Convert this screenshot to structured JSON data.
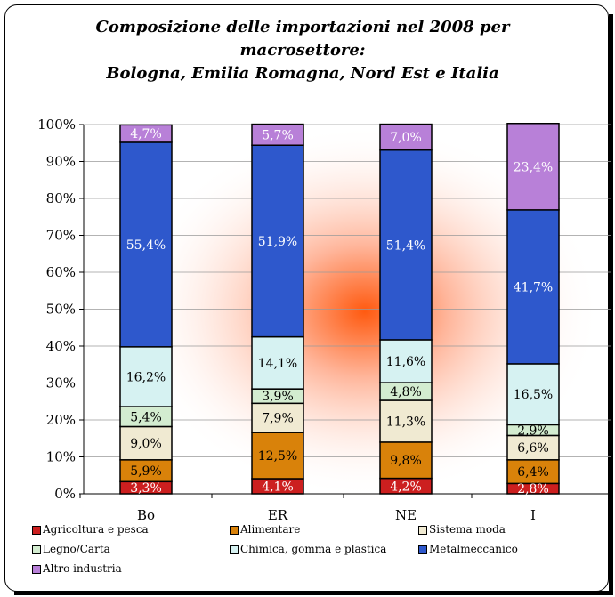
{
  "title_lines": [
    "Composizione delle importazioni nel 2008 per",
    "macrosettore:",
    "Bologna, Emilia Romagna, Nord Est e Italia"
  ],
  "chart_data": {
    "type": "bar",
    "stacked": true,
    "percent": true,
    "categories": [
      "Bo",
      "ER",
      "NE",
      "I"
    ],
    "ylim": [
      0,
      100
    ],
    "yticks": [
      "0%",
      "10%",
      "20%",
      "30%",
      "40%",
      "50%",
      "60%",
      "70%",
      "80%",
      "90%",
      "100%"
    ],
    "grid": true,
    "legend_position": "bottom",
    "series": [
      {
        "name": "Agricoltura e pesca",
        "color": "#cc1f1f",
        "values": [
          3.3,
          4.1,
          4.2,
          2.8
        ],
        "labels": [
          "3,3%",
          "4,1%",
          "4,2%",
          "2,8%"
        ]
      },
      {
        "name": "Alimentare",
        "color": "#d9820a",
        "values": [
          5.9,
          12.5,
          9.8,
          6.4
        ],
        "labels": [
          "5,9%",
          "12,5%",
          "9,8%",
          "6,4%"
        ]
      },
      {
        "name": "Sistema moda",
        "color": "#f0ead2",
        "values": [
          9.0,
          7.9,
          11.3,
          6.6
        ],
        "labels": [
          "9,0%",
          "7,9%",
          "11,3%",
          "6,6%"
        ]
      },
      {
        "name": "Legno/Carta",
        "color": "#d3ecd0",
        "values": [
          5.4,
          3.9,
          4.8,
          2.9
        ],
        "labels": [
          "5,4%",
          "3,9%",
          "4,8%",
          "2,9%"
        ]
      },
      {
        "name": "Chimica, gomma e plastica",
        "color": "#d6f2f2",
        "values": [
          16.2,
          14.1,
          11.6,
          16.5
        ],
        "labels": [
          "16,2%",
          "14,1%",
          "11,6%",
          "16,5%"
        ]
      },
      {
        "name": "Metalmeccanico",
        "color": "#2e58cc",
        "values": [
          55.4,
          51.9,
          51.4,
          41.7
        ],
        "labels": [
          "55,4%",
          "51,9%",
          "51,4%",
          "41,7%"
        ]
      },
      {
        "name": "Altro industria",
        "color": "#b880d8",
        "values": [
          4.7,
          5.7,
          7.0,
          23.4
        ],
        "labels": [
          "4,7%",
          "5,7%",
          "7,0%",
          "23,4%"
        ]
      }
    ],
    "legend_labels": [
      "Agricoltura e pesca",
      "Alimentare",
      "Sistema moda",
      "Legno/Carta",
      "Chimica, gomma e plastica",
      "Metalmeccanico",
      "Altro industria"
    ]
  }
}
